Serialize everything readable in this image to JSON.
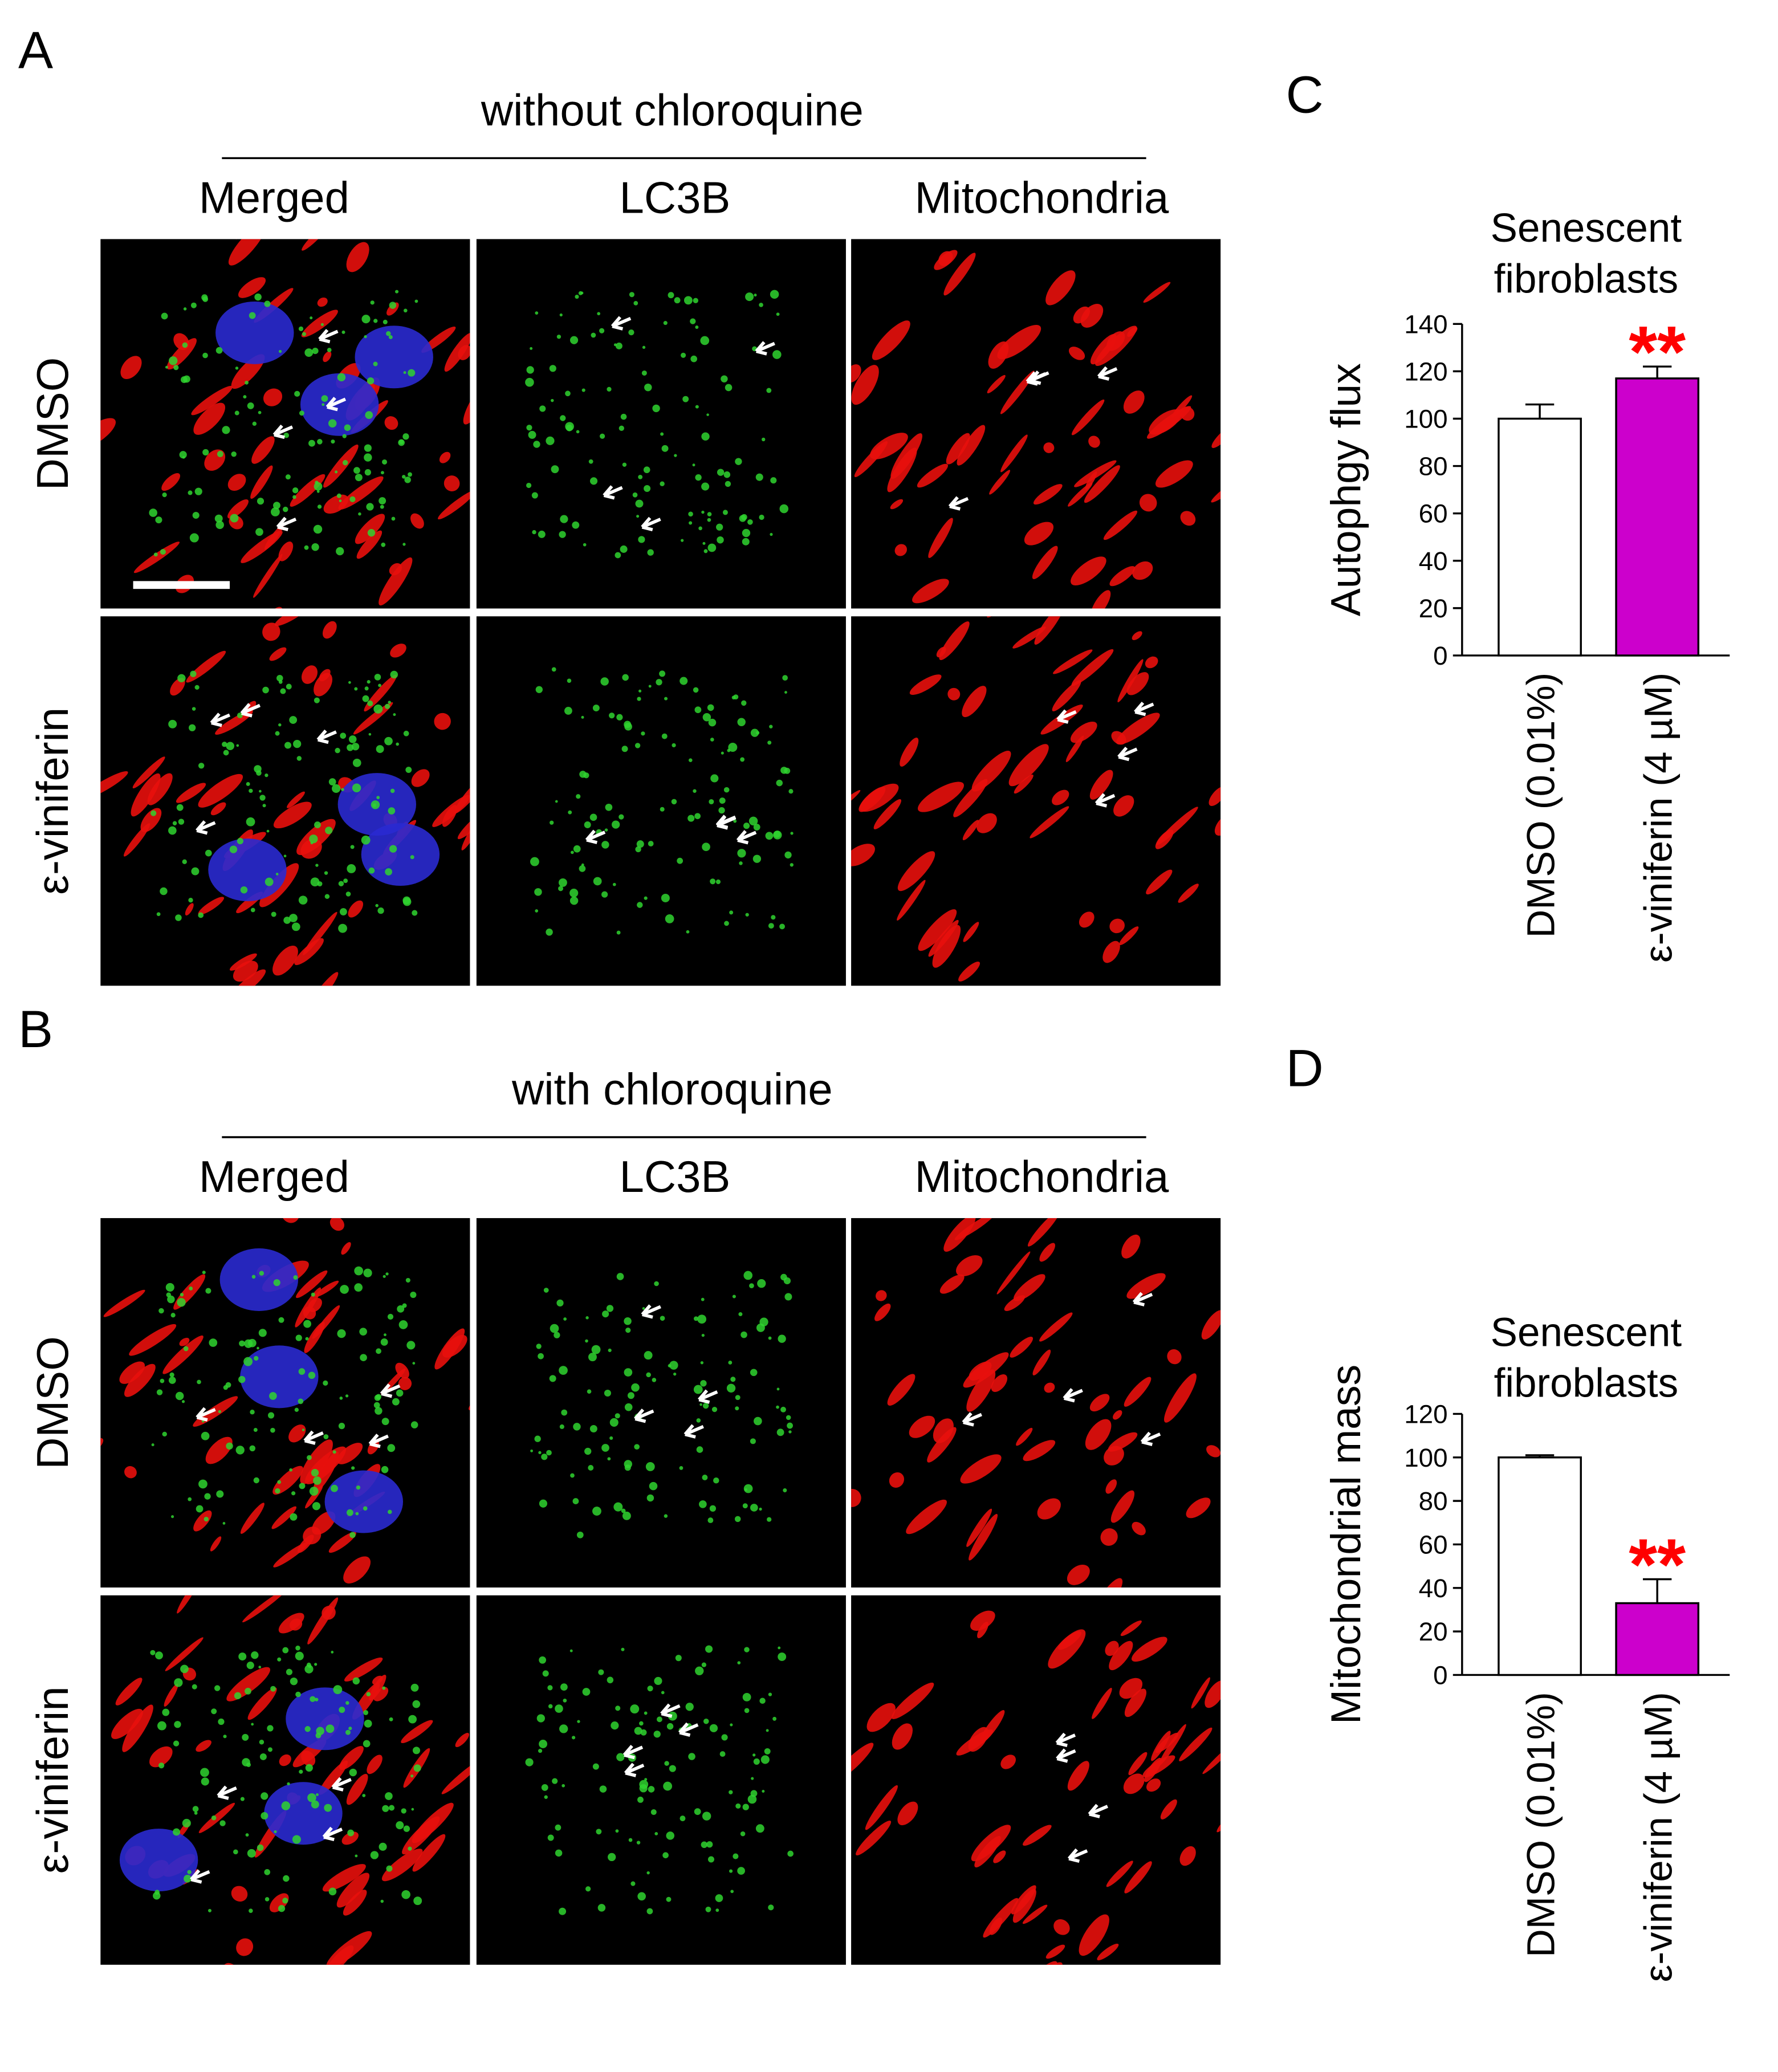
{
  "panels": [
    {
      "label": "A",
      "title": "without chloroquine",
      "columns": [
        "Merged",
        "LC3B",
        "Mitochondria"
      ],
      "rows": [
        "DMSO",
        "ε-viniferin"
      ]
    },
    {
      "label": "B",
      "title": "with chloroquine",
      "columns": [
        "Merged",
        "LC3B",
        "Mitochondria"
      ],
      "rows": [
        "DMSO",
        "ε-viniferin"
      ]
    }
  ],
  "chart_data": [
    {
      "type": "bar",
      "label": "C",
      "title": "Senescent fibroblasts",
      "ylabel": "Autophgy flux",
      "categories": [
        "DMSO (0.01%)",
        "ε-viniferin (4 µM)"
      ],
      "values": [
        100,
        117
      ],
      "errors": [
        6,
        5
      ],
      "colors": [
        "#ffffff",
        "#cc00cc"
      ],
      "significance": [
        null,
        "**"
      ],
      "significance_color": "#ff0000",
      "ylim": [
        0,
        140
      ],
      "yticks": [
        0,
        20,
        40,
        60,
        80,
        100,
        120,
        140
      ]
    },
    {
      "type": "bar",
      "label": "D",
      "title": "Senescent fibroblasts",
      "ylabel": "Mitochondrial mass",
      "categories": [
        "DMSO (0.01%)",
        "ε-viniferin (4 µM)"
      ],
      "values": [
        100,
        33
      ],
      "errors": [
        1,
        11
      ],
      "colors": [
        "#ffffff",
        "#cc00cc"
      ],
      "significance": [
        null,
        "**"
      ],
      "significance_color": "#ff0000",
      "ylim": [
        0,
        120
      ],
      "yticks": [
        0,
        20,
        40,
        60,
        80,
        100,
        120
      ]
    }
  ]
}
